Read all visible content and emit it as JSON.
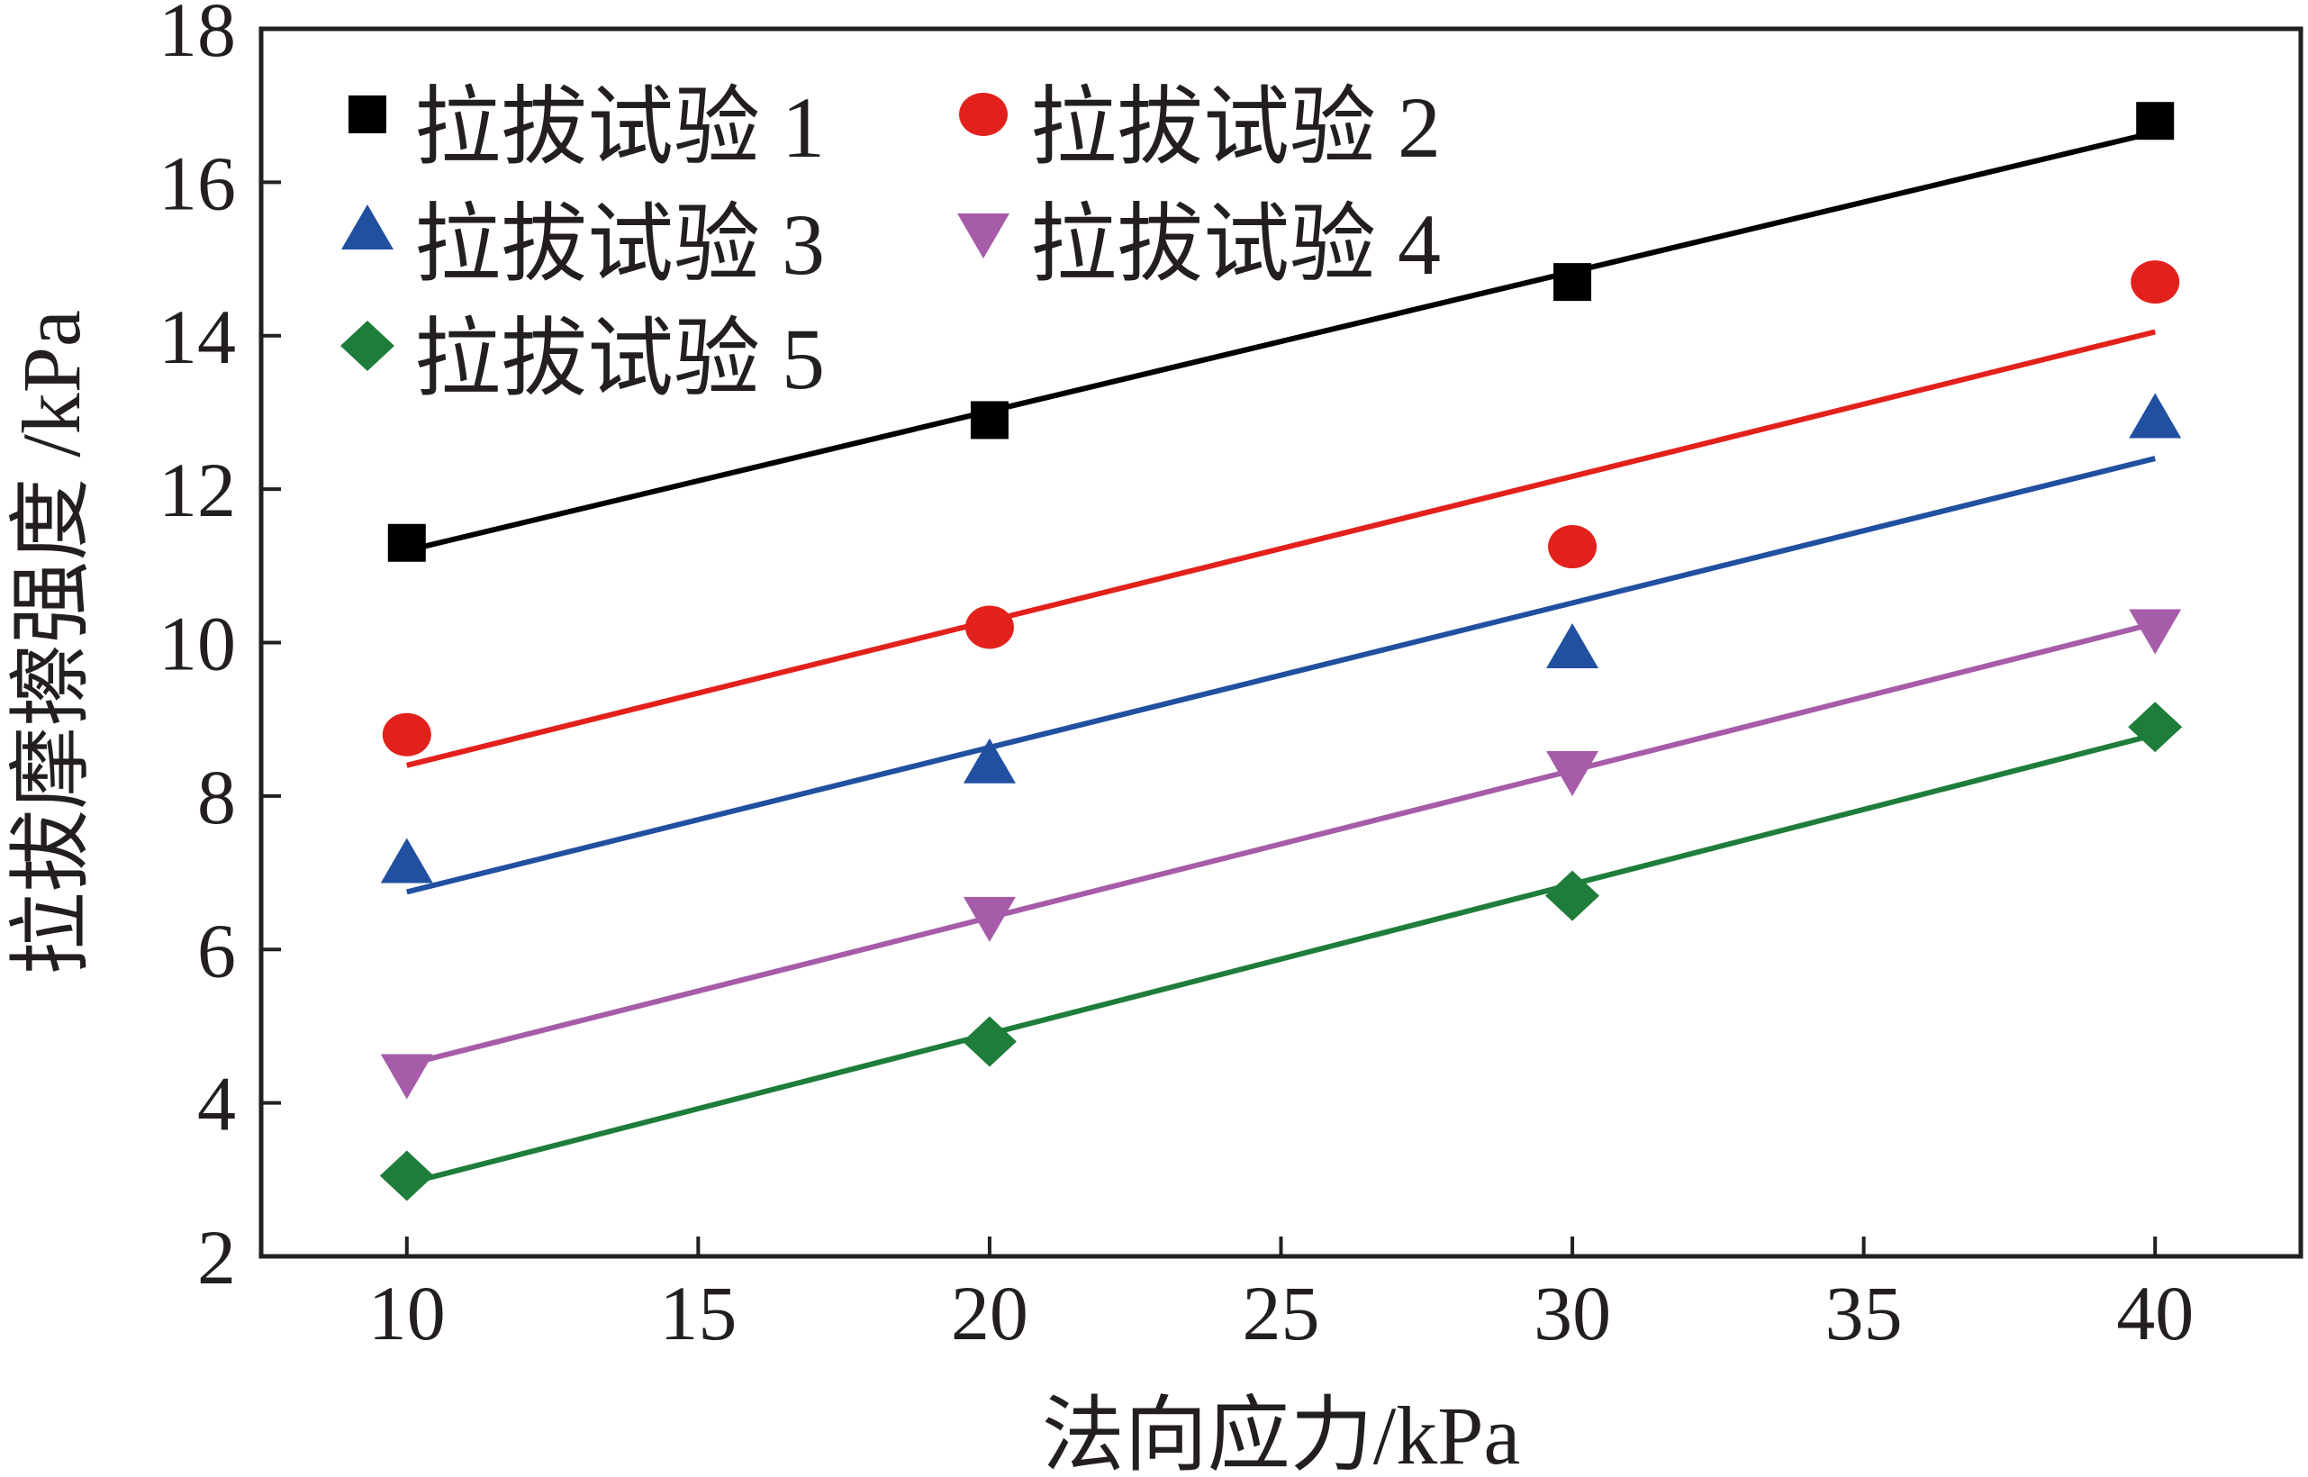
{
  "chart_data": {
    "type": "scatter",
    "xlabel": "法向应力/kPa",
    "ylabel": "拉拔摩擦强度 /kPa",
    "xlim": [
      7.5,
      42.5
    ],
    "ylim": [
      2,
      18
    ],
    "xticks": [
      10,
      15,
      20,
      25,
      30,
      35,
      40
    ],
    "yticks": [
      2,
      4,
      6,
      8,
      10,
      12,
      14,
      16,
      18
    ],
    "grid": false,
    "legend_position": "top-left",
    "x": [
      10,
      20,
      30,
      40
    ],
    "series": [
      {
        "name": "拉拔试验 1",
        "marker": "square",
        "color": "#000000",
        "values": [
          11.3,
          12.9,
          14.7,
          16.8
        ],
        "fit": [
          11.2,
          16.65
        ]
      },
      {
        "name": "拉拔试验 2",
        "marker": "circle",
        "color": "#e3211c",
        "values": [
          8.8,
          10.2,
          11.25,
          14.7
        ],
        "fit": [
          8.4,
          14.05
        ]
      },
      {
        "name": "拉拔试验 3",
        "marker": "triangle-up",
        "color": "#2150a0",
        "values": [
          7.1,
          8.4,
          9.9,
          12.9
        ],
        "fit": [
          6.75,
          12.4
        ]
      },
      {
        "name": "拉拔试验 4",
        "marker": "triangle-down",
        "color": "#a65ca8",
        "values": [
          4.4,
          6.45,
          8.35,
          10.2
        ],
        "fit": [
          4.5,
          10.25
        ]
      },
      {
        "name": "拉拔试验 5",
        "marker": "diamond",
        "color": "#1f7d3b",
        "values": [
          3.05,
          4.8,
          6.7,
          8.9
        ],
        "fit": [
          2.95,
          8.8
        ]
      }
    ]
  }
}
